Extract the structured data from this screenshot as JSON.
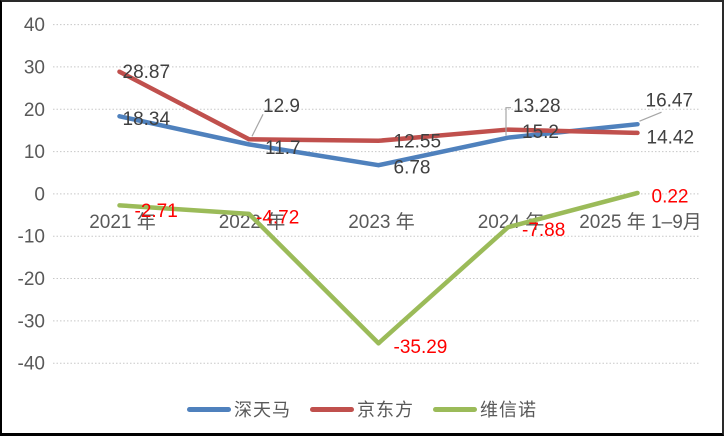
{
  "chart_data": {
    "type": "line",
    "title": "",
    "xlabel": "",
    "ylabel": "",
    "ylim": [
      -40,
      40
    ],
    "ytick_step": 10,
    "ytick_labels": [
      "40",
      "30",
      "20",
      "10",
      "0",
      "-10",
      "-20",
      "-30",
      "-40"
    ],
    "grid": true,
    "gridline_color": "#c8c8c8",
    "axis_text_color": "#595959",
    "data_label_color": "#404040",
    "negative_label_color": "#ff0000",
    "leader_line_color": "#a6a6a6",
    "legend_position": "bottom",
    "categories": [
      "2021 年",
      "2022 年",
      "2023 年",
      "2024 年",
      "2025 年 1–9月"
    ],
    "series": [
      {
        "name": "深天马",
        "color": "#4F81BD",
        "label_color": "#404040",
        "values": [
          18.34,
          11.7,
          6.78,
          13.28,
          16.47
        ],
        "labels": [
          {
            "text": "18.34",
            "dx": 3,
            "dy": 2
          },
          {
            "text": "11.7",
            "dx": 16,
            "dy": 3
          },
          {
            "text": "6.78",
            "dx": 15,
            "dy": 2
          },
          {
            "text": "13.28",
            "dx": 5,
            "dy": -32,
            "leader": [
              [
                -2,
                -2
              ],
              [
                -2,
                -30
              ],
              [
                3,
                -30
              ]
            ]
          },
          {
            "text": "16.47",
            "dx": 8,
            "dy": -24,
            "leader": [
              [
                2,
                -3
              ],
              [
                24,
                -12
              ]
            ]
          }
        ]
      },
      {
        "name": "京东方",
        "color": "#C0504D",
        "label_color": "#404040",
        "values": [
          28.87,
          12.9,
          12.55,
          15.2,
          14.42
        ],
        "labels": [
          {
            "text": "28.87",
            "dx": 3,
            "dy": 0
          },
          {
            "text": "12.9",
            "dx": 14,
            "dy": -34,
            "leader": [
              [
                3,
                -3
              ],
              [
                14,
                -25
              ]
            ]
          },
          {
            "text": "12.55",
            "dx": 15,
            "dy": 0
          },
          {
            "text": "15.2",
            "dx": 14,
            "dy": 2
          },
          {
            "text": "14.42",
            "dx": 9,
            "dy": 4
          }
        ]
      },
      {
        "name": "维信诺",
        "color": "#9BBB59",
        "label_color": "#ff0000",
        "values": [
          -2.71,
          -4.72,
          -35.29,
          -7.88,
          0.22
        ],
        "labels": [
          {
            "text": "-2.71",
            "dx": 15,
            "dy": 5
          },
          {
            "text": "-4.72",
            "dx": 7,
            "dy": 3
          },
          {
            "text": "-35.29",
            "dx": 15,
            "dy": 3
          },
          {
            "text": "-7.88",
            "dx": 14,
            "dy": 2
          },
          {
            "text": "0.22",
            "dx": 14,
            "dy": 3
          }
        ]
      }
    ]
  }
}
